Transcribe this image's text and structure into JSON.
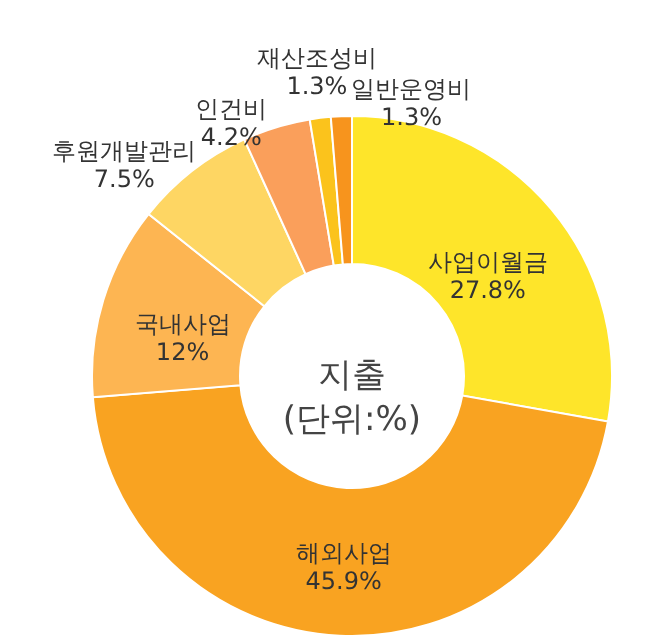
{
  "chart_data": {
    "type": "donut",
    "title": "지출",
    "subtitle": "(단위:%)",
    "categories": [
      "사업이월금",
      "해외사업",
      "국내사업",
      "후원개발관리",
      "인건비",
      "재산조성비",
      "일반운영비"
    ],
    "values": [
      27.8,
      45.9,
      12,
      7.5,
      4.2,
      1.3,
      1.3
    ],
    "value_labels": [
      "27.8%",
      "45.9%",
      "12%",
      "7.5%",
      "4.2%",
      "1.3%",
      "1.3%"
    ],
    "colors": [
      "#fee52a",
      "#f9a321",
      "#fdb552",
      "#fed663",
      "#fa9f5b",
      "#fbc31c",
      "#f7941d"
    ]
  }
}
